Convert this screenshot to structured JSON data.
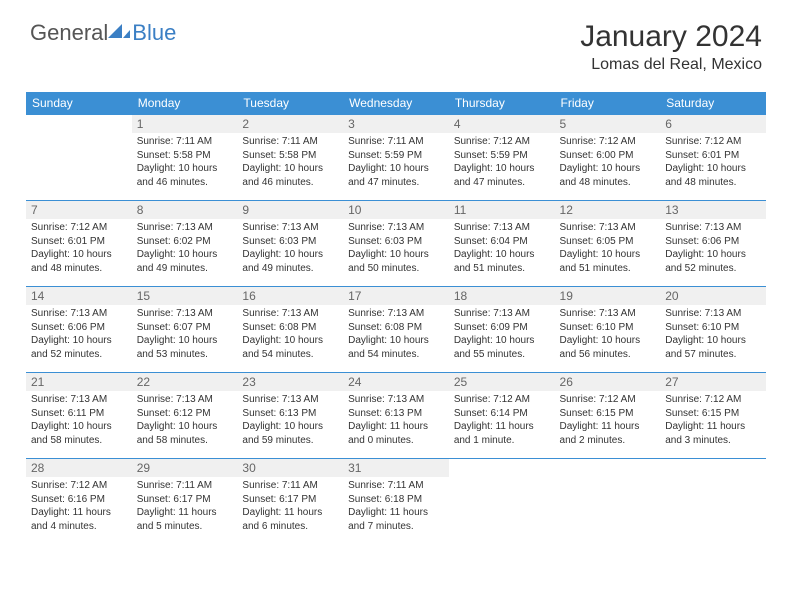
{
  "logo": {
    "text1": "General",
    "text2": "Blue"
  },
  "title": "January 2024",
  "location": "Lomas del Real, Mexico",
  "colors": {
    "header_bg": "#3b8fd4",
    "header_text": "#ffffff",
    "daynum_bg": "#f0f0f0",
    "border": "#3b8fd4",
    "logo_gray": "#555555",
    "logo_blue": "#3b7fc4"
  },
  "weekdays": [
    "Sunday",
    "Monday",
    "Tuesday",
    "Wednesday",
    "Thursday",
    "Friday",
    "Saturday"
  ],
  "weeks": [
    [
      null,
      {
        "n": "1",
        "sunrise": "7:11 AM",
        "sunset": "5:58 PM",
        "daylight": "10 hours and 46 minutes."
      },
      {
        "n": "2",
        "sunrise": "7:11 AM",
        "sunset": "5:58 PM",
        "daylight": "10 hours and 46 minutes."
      },
      {
        "n": "3",
        "sunrise": "7:11 AM",
        "sunset": "5:59 PM",
        "daylight": "10 hours and 47 minutes."
      },
      {
        "n": "4",
        "sunrise": "7:12 AM",
        "sunset": "5:59 PM",
        "daylight": "10 hours and 47 minutes."
      },
      {
        "n": "5",
        "sunrise": "7:12 AM",
        "sunset": "6:00 PM",
        "daylight": "10 hours and 48 minutes."
      },
      {
        "n": "6",
        "sunrise": "7:12 AM",
        "sunset": "6:01 PM",
        "daylight": "10 hours and 48 minutes."
      }
    ],
    [
      {
        "n": "7",
        "sunrise": "7:12 AM",
        "sunset": "6:01 PM",
        "daylight": "10 hours and 48 minutes."
      },
      {
        "n": "8",
        "sunrise": "7:13 AM",
        "sunset": "6:02 PM",
        "daylight": "10 hours and 49 minutes."
      },
      {
        "n": "9",
        "sunrise": "7:13 AM",
        "sunset": "6:03 PM",
        "daylight": "10 hours and 49 minutes."
      },
      {
        "n": "10",
        "sunrise": "7:13 AM",
        "sunset": "6:03 PM",
        "daylight": "10 hours and 50 minutes."
      },
      {
        "n": "11",
        "sunrise": "7:13 AM",
        "sunset": "6:04 PM",
        "daylight": "10 hours and 51 minutes."
      },
      {
        "n": "12",
        "sunrise": "7:13 AM",
        "sunset": "6:05 PM",
        "daylight": "10 hours and 51 minutes."
      },
      {
        "n": "13",
        "sunrise": "7:13 AM",
        "sunset": "6:06 PM",
        "daylight": "10 hours and 52 minutes."
      }
    ],
    [
      {
        "n": "14",
        "sunrise": "7:13 AM",
        "sunset": "6:06 PM",
        "daylight": "10 hours and 52 minutes."
      },
      {
        "n": "15",
        "sunrise": "7:13 AM",
        "sunset": "6:07 PM",
        "daylight": "10 hours and 53 minutes."
      },
      {
        "n": "16",
        "sunrise": "7:13 AM",
        "sunset": "6:08 PM",
        "daylight": "10 hours and 54 minutes."
      },
      {
        "n": "17",
        "sunrise": "7:13 AM",
        "sunset": "6:08 PM",
        "daylight": "10 hours and 54 minutes."
      },
      {
        "n": "18",
        "sunrise": "7:13 AM",
        "sunset": "6:09 PM",
        "daylight": "10 hours and 55 minutes."
      },
      {
        "n": "19",
        "sunrise": "7:13 AM",
        "sunset": "6:10 PM",
        "daylight": "10 hours and 56 minutes."
      },
      {
        "n": "20",
        "sunrise": "7:13 AM",
        "sunset": "6:10 PM",
        "daylight": "10 hours and 57 minutes."
      }
    ],
    [
      {
        "n": "21",
        "sunrise": "7:13 AM",
        "sunset": "6:11 PM",
        "daylight": "10 hours and 58 minutes."
      },
      {
        "n": "22",
        "sunrise": "7:13 AM",
        "sunset": "6:12 PM",
        "daylight": "10 hours and 58 minutes."
      },
      {
        "n": "23",
        "sunrise": "7:13 AM",
        "sunset": "6:13 PM",
        "daylight": "10 hours and 59 minutes."
      },
      {
        "n": "24",
        "sunrise": "7:13 AM",
        "sunset": "6:13 PM",
        "daylight": "11 hours and 0 minutes."
      },
      {
        "n": "25",
        "sunrise": "7:12 AM",
        "sunset": "6:14 PM",
        "daylight": "11 hours and 1 minute."
      },
      {
        "n": "26",
        "sunrise": "7:12 AM",
        "sunset": "6:15 PM",
        "daylight": "11 hours and 2 minutes."
      },
      {
        "n": "27",
        "sunrise": "7:12 AM",
        "sunset": "6:15 PM",
        "daylight": "11 hours and 3 minutes."
      }
    ],
    [
      {
        "n": "28",
        "sunrise": "7:12 AM",
        "sunset": "6:16 PM",
        "daylight": "11 hours and 4 minutes."
      },
      {
        "n": "29",
        "sunrise": "7:11 AM",
        "sunset": "6:17 PM",
        "daylight": "11 hours and 5 minutes."
      },
      {
        "n": "30",
        "sunrise": "7:11 AM",
        "sunset": "6:17 PM",
        "daylight": "11 hours and 6 minutes."
      },
      {
        "n": "31",
        "sunrise": "7:11 AM",
        "sunset": "6:18 PM",
        "daylight": "11 hours and 7 minutes."
      },
      null,
      null,
      null
    ]
  ],
  "labels": {
    "sunrise": "Sunrise: ",
    "sunset": "Sunset: ",
    "daylight": "Daylight: "
  }
}
